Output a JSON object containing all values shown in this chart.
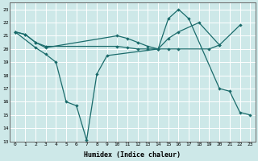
{
  "xlabel": "Humidex (Indice chaleur)",
  "background_color": "#cde8e8",
  "grid_color": "#ffffff",
  "line_color": "#1a6b6b",
  "xlim": [
    -0.5,
    23.5
  ],
  "ylim": [
    13,
    23.5
  ],
  "yticks": [
    13,
    14,
    15,
    16,
    17,
    18,
    19,
    20,
    21,
    22,
    23
  ],
  "xticks": [
    0,
    1,
    2,
    3,
    4,
    5,
    6,
    7,
    8,
    9,
    10,
    11,
    12,
    13,
    14,
    15,
    16,
    17,
    18,
    19,
    20,
    21,
    22,
    23
  ],
  "line1_x": [
    0,
    1,
    2,
    3,
    10,
    11,
    12,
    13,
    14,
    15,
    16,
    18,
    20
  ],
  "line1_y": [
    21.3,
    21.1,
    20.5,
    20.1,
    21.0,
    20.8,
    20.5,
    20.2,
    20.0,
    20.8,
    21.3,
    22.0,
    20.3
  ],
  "line2_x": [
    0,
    2,
    3,
    4,
    5,
    6,
    7,
    8,
    9,
    14,
    15,
    16,
    17,
    20,
    21,
    22,
    23
  ],
  "line2_y": [
    21.3,
    20.1,
    19.6,
    19.0,
    16.0,
    15.7,
    13.1,
    18.1,
    19.5,
    20.0,
    22.3,
    23.0,
    22.3,
    17.0,
    16.8,
    15.2,
    15.0
  ],
  "line3_x": [
    0,
    1,
    2,
    3,
    10,
    11,
    12,
    13,
    14,
    15,
    16,
    19,
    20,
    22
  ],
  "line3_y": [
    21.3,
    21.1,
    20.5,
    20.2,
    20.2,
    20.1,
    20.0,
    20.0,
    20.0,
    20.0,
    20.0,
    20.0,
    20.3,
    21.8
  ]
}
